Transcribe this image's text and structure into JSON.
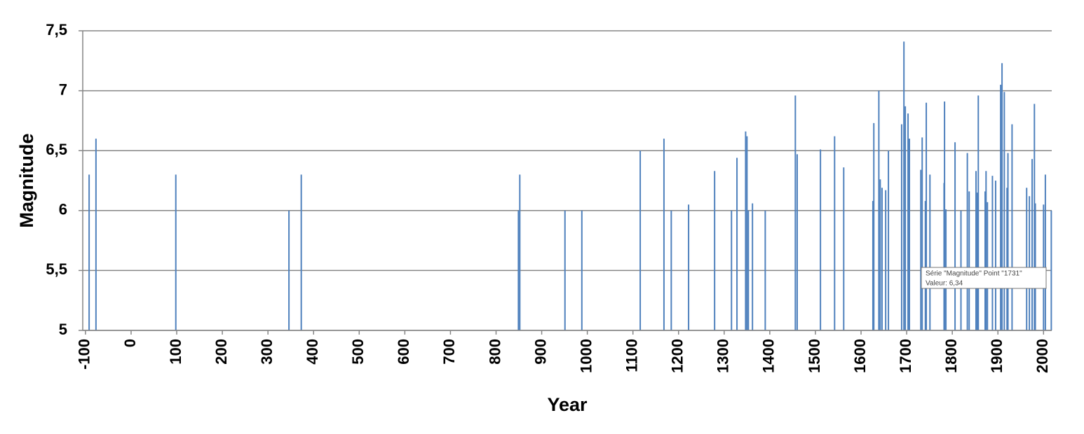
{
  "chart_data": {
    "type": "bar",
    "x_label": "Year",
    "y_label": "Magnitude",
    "x": [
      -92,
      -77,
      98,
      346,
      373,
      849,
      852,
      951,
      988,
      1116,
      1168,
      1184,
      1222,
      1279,
      1316,
      1328,
      1347,
      1350,
      1353,
      1362,
      1390,
      1456,
      1460,
      1511,
      1542,
      1562,
      1626,
      1628,
      1639,
      1642,
      1646,
      1654,
      1660,
      1689,
      1694,
      1697,
      1703,
      1706,
      1731,
      1734,
      1741,
      1743,
      1751,
      1782,
      1783,
      1786,
      1806,
      1819,
      1833,
      1837,
      1852,
      1855,
      1857,
      1872,
      1874,
      1877,
      1888,
      1895,
      1906,
      1909,
      1914,
      1920,
      1922,
      1931,
      1963,
      1969,
      1975,
      1980,
      1982,
      2000,
      2004,
      2017
    ],
    "values": [
      6.3,
      6.6,
      6.3,
      6.0,
      6.3,
      6.0,
      6.3,
      6.0,
      6.0,
      6.5,
      6.6,
      6.0,
      6.05,
      6.33,
      6.0,
      6.44,
      6.66,
      6.62,
      6.0,
      6.06,
      6.0,
      6.96,
      6.47,
      6.51,
      6.62,
      6.36,
      6.08,
      6.73,
      7.0,
      6.26,
      6.19,
      6.17,
      6.5,
      6.72,
      7.41,
      6.87,
      6.81,
      6.6,
      6.34,
      6.61,
      6.08,
      6.9,
      6.3,
      6.23,
      6.91,
      6.01,
      6.57,
      6.0,
      6.48,
      6.16,
      6.33,
      6.15,
      6.96,
      6.16,
      6.33,
      6.07,
      6.29,
      6.25,
      7.05,
      7.23,
      6.99,
      6.19,
      6.48,
      6.72,
      6.19,
      6.12,
      6.43,
      6.89,
      6.06,
      6.05,
      6.3,
      6.0
    ],
    "color": "#4f81bd",
    "xlim": [
      -106,
      2018
    ],
    "xticks": [
      -100,
      0,
      100,
      200,
      300,
      400,
      500,
      600,
      700,
      800,
      900,
      1000,
      1100,
      1200,
      1300,
      1400,
      1500,
      1600,
      1700,
      1800,
      1900,
      2000
    ],
    "ylim": [
      5,
      7.5
    ],
    "yticks": [
      {
        "value": 5,
        "label": "5"
      },
      {
        "value": 5.5,
        "label": "5,5"
      },
      {
        "value": 6,
        "label": "6"
      },
      {
        "value": 6.5,
        "label": "6,5"
      },
      {
        "value": 7,
        "label": "7"
      },
      {
        "value": 7.5,
        "label": "7,5"
      }
    ],
    "grid": true,
    "tooltip": {
      "lines": [
        "Série \"Magnitude\" Point \"1731\"",
        "Valeur: 6,34"
      ]
    }
  }
}
